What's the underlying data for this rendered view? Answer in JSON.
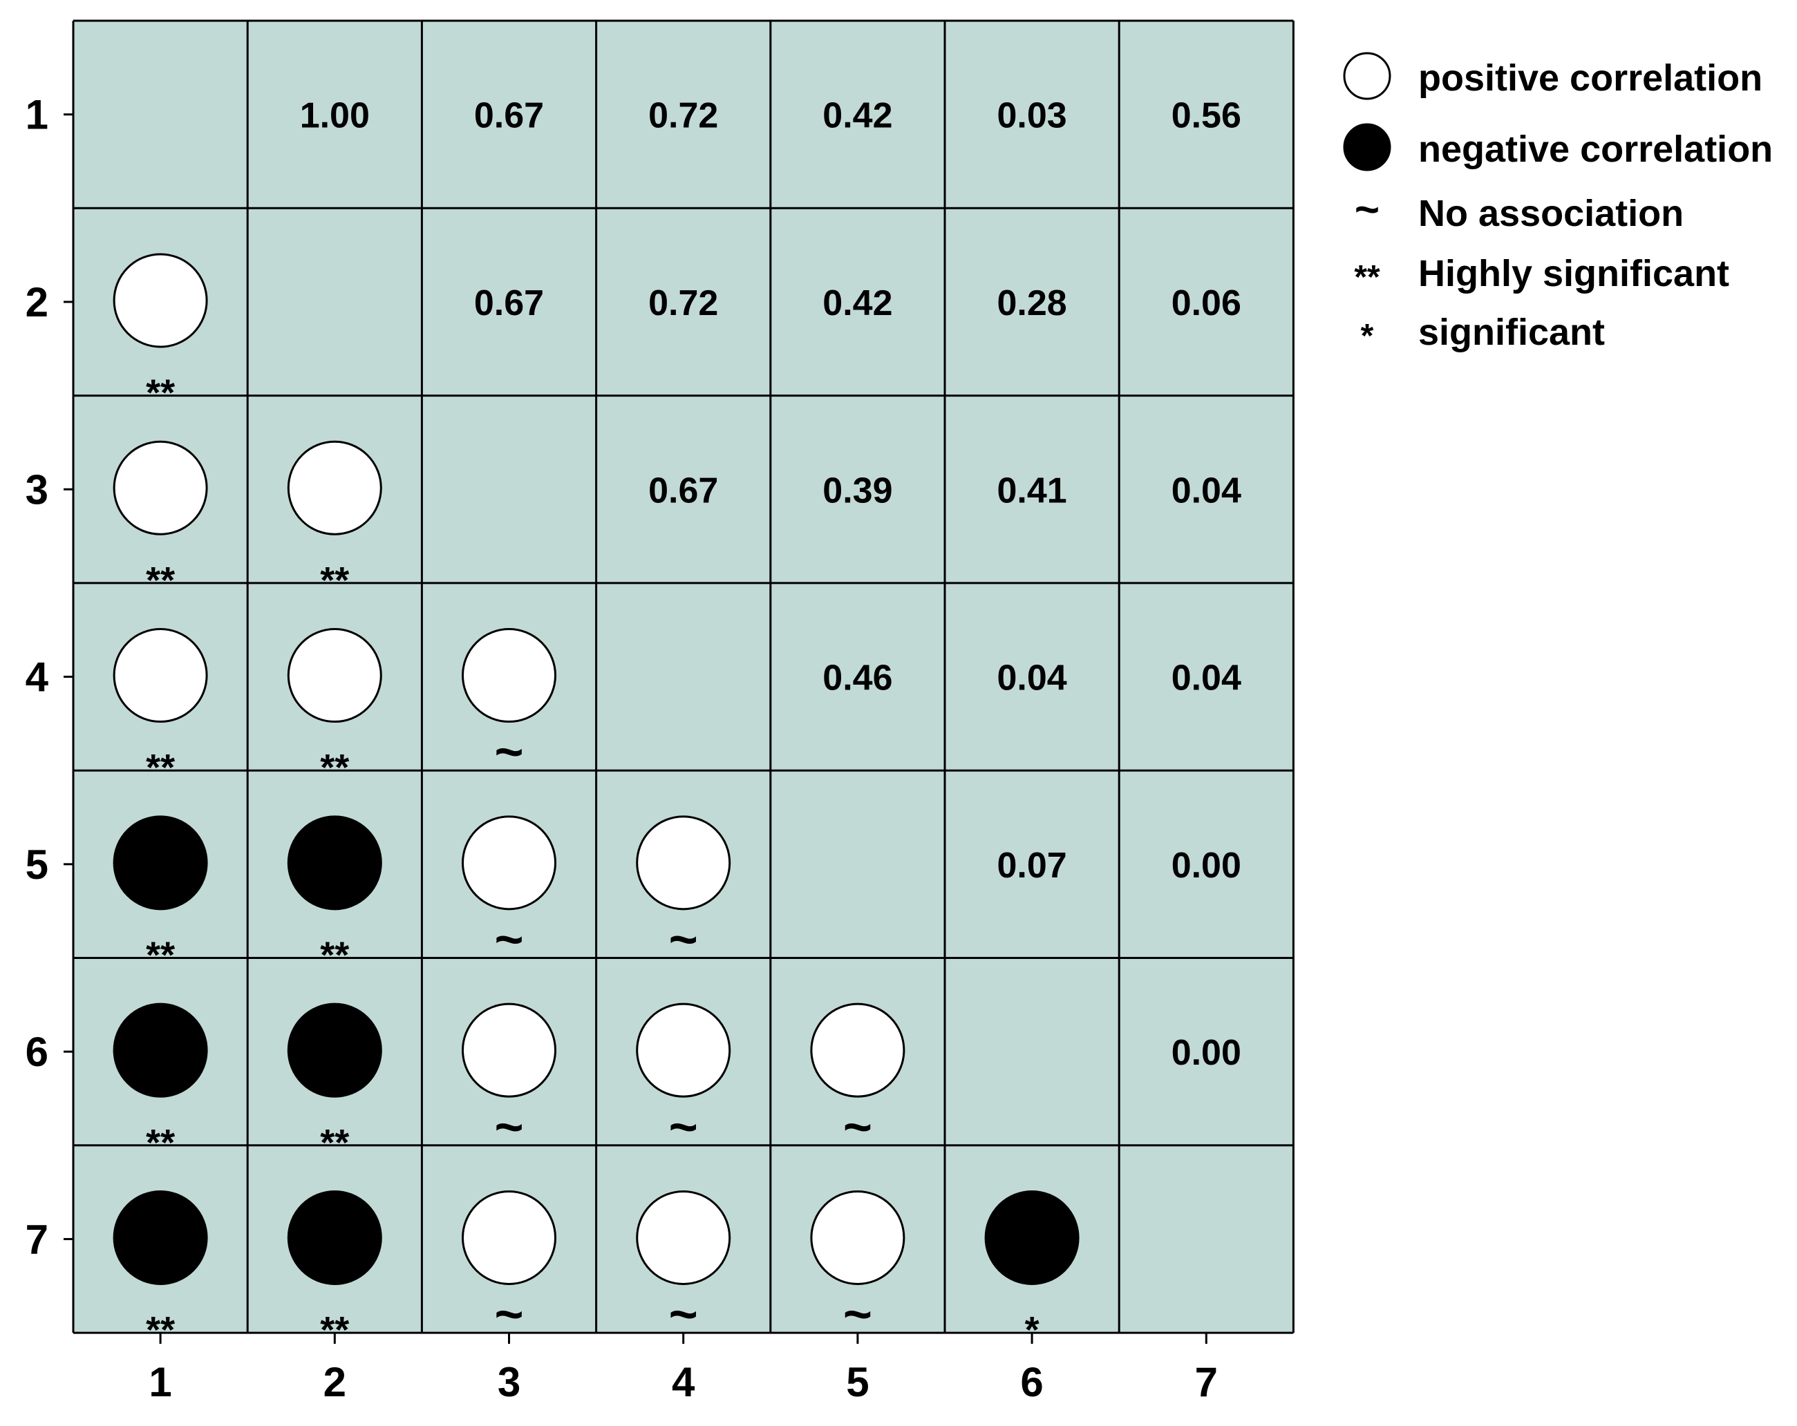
{
  "chart_data": {
    "type": "heatmap",
    "title": "",
    "xlabel": "",
    "ylabel": "",
    "x_ticks": [
      "1",
      "2",
      "3",
      "4",
      "5",
      "6",
      "7"
    ],
    "y_ticks": [
      "1",
      "2",
      "3",
      "4",
      "5",
      "6",
      "7"
    ],
    "colors": {
      "cell_background": "#c2dad6",
      "grid_line": "#000000",
      "positive": "#ffffff",
      "negative": "#000000"
    },
    "upper_values": [
      {
        "row": 1,
        "col": 2,
        "value": "1.00"
      },
      {
        "row": 1,
        "col": 3,
        "value": "0.67"
      },
      {
        "row": 1,
        "col": 4,
        "value": "0.72"
      },
      {
        "row": 1,
        "col": 5,
        "value": "0.42"
      },
      {
        "row": 1,
        "col": 6,
        "value": "0.03"
      },
      {
        "row": 1,
        "col": 7,
        "value": "0.56"
      },
      {
        "row": 2,
        "col": 3,
        "value": "0.67"
      },
      {
        "row": 2,
        "col": 4,
        "value": "0.72"
      },
      {
        "row": 2,
        "col": 5,
        "value": "0.42"
      },
      {
        "row": 2,
        "col": 6,
        "value": "0.28"
      },
      {
        "row": 2,
        "col": 7,
        "value": "0.06"
      },
      {
        "row": 3,
        "col": 4,
        "value": "0.67"
      },
      {
        "row": 3,
        "col": 5,
        "value": "0.39"
      },
      {
        "row": 3,
        "col": 6,
        "value": "0.41"
      },
      {
        "row": 3,
        "col": 7,
        "value": "0.04"
      },
      {
        "row": 4,
        "col": 5,
        "value": "0.46"
      },
      {
        "row": 4,
        "col": 6,
        "value": "0.04"
      },
      {
        "row": 4,
        "col": 7,
        "value": "0.04"
      },
      {
        "row": 5,
        "col": 6,
        "value": "0.07"
      },
      {
        "row": 5,
        "col": 7,
        "value": "0.00"
      },
      {
        "row": 6,
        "col": 7,
        "value": "0.00"
      }
    ],
    "lower_markers": [
      {
        "row": 2,
        "col": 1,
        "sign": "positive",
        "sig": "**"
      },
      {
        "row": 3,
        "col": 1,
        "sign": "positive",
        "sig": "**"
      },
      {
        "row": 3,
        "col": 2,
        "sign": "positive",
        "sig": "**"
      },
      {
        "row": 4,
        "col": 1,
        "sign": "positive",
        "sig": "**"
      },
      {
        "row": 4,
        "col": 2,
        "sign": "positive",
        "sig": "**"
      },
      {
        "row": 4,
        "col": 3,
        "sign": "positive",
        "sig": "~"
      },
      {
        "row": 5,
        "col": 1,
        "sign": "negative",
        "sig": "**"
      },
      {
        "row": 5,
        "col": 2,
        "sign": "negative",
        "sig": "**"
      },
      {
        "row": 5,
        "col": 3,
        "sign": "positive",
        "sig": "~"
      },
      {
        "row": 5,
        "col": 4,
        "sign": "positive",
        "sig": "~"
      },
      {
        "row": 6,
        "col": 1,
        "sign": "negative",
        "sig": "**"
      },
      {
        "row": 6,
        "col": 2,
        "sign": "negative",
        "sig": "**"
      },
      {
        "row": 6,
        "col": 3,
        "sign": "positive",
        "sig": "~"
      },
      {
        "row": 6,
        "col": 4,
        "sign": "positive",
        "sig": "~"
      },
      {
        "row": 6,
        "col": 5,
        "sign": "positive",
        "sig": "~"
      },
      {
        "row": 7,
        "col": 1,
        "sign": "negative",
        "sig": "**"
      },
      {
        "row": 7,
        "col": 2,
        "sign": "negative",
        "sig": "**"
      },
      {
        "row": 7,
        "col": 3,
        "sign": "positive",
        "sig": "~"
      },
      {
        "row": 7,
        "col": 4,
        "sign": "positive",
        "sig": "~"
      },
      {
        "row": 7,
        "col": 5,
        "sign": "positive",
        "sig": "~"
      },
      {
        "row": 7,
        "col": 6,
        "sign": "negative",
        "sig": "*"
      }
    ],
    "legend": [
      {
        "symbol": "open-circle",
        "label": "positive correlation"
      },
      {
        "symbol": "filled-circle",
        "label": "negative correlation"
      },
      {
        "symbol": "~",
        "label": "No association"
      },
      {
        "symbol": "**",
        "label": "Highly significant"
      },
      {
        "symbol": "*",
        "label": "significant"
      }
    ],
    "legend_position": "top-right",
    "grid": true
  }
}
